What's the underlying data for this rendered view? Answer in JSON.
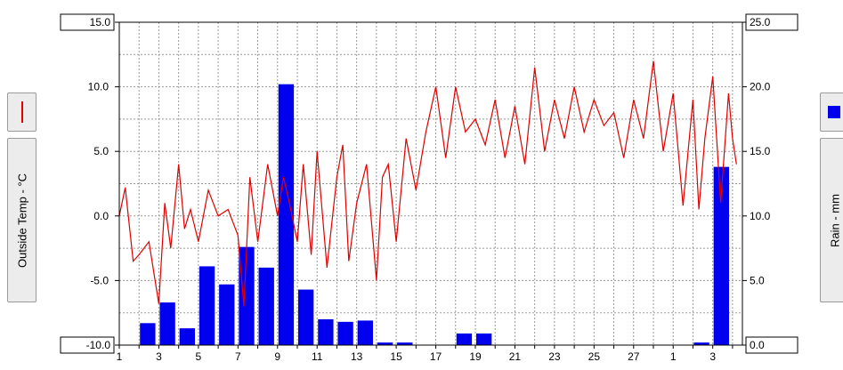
{
  "left_panel": {
    "legend_icon": "red-line-swatch-icon",
    "axis_label": "Outside Temp - °C"
  },
  "right_panel": {
    "legend_icon": "blue-square-swatch-icon",
    "axis_label": "Rain - mm"
  },
  "chart_data": {
    "type": "line+bar",
    "series": [
      {
        "name": "Outside Temp",
        "axis": "left",
        "unit": "°C",
        "color": "#e00000",
        "x": [
          1,
          1.3,
          1.7,
          2,
          2.5,
          3,
          3.3,
          3.6,
          4,
          4.3,
          4.6,
          5,
          5.5,
          6,
          6.5,
          7,
          7.3,
          7.6,
          8,
          8.5,
          9,
          9.3,
          9.6,
          10,
          10.3,
          10.7,
          11,
          11.5,
          12,
          12.3,
          12.6,
          13,
          13.5,
          14,
          14.3,
          14.6,
          15,
          15.5,
          16,
          16.5,
          17,
          17.5,
          18,
          18.5,
          19,
          19.5,
          20,
          20.5,
          21,
          21.5,
          22,
          22.5,
          23,
          23.5,
          24,
          24.5,
          25,
          25.5,
          26,
          26.5,
          27,
          27.5,
          28,
          28.5,
          29,
          29.5,
          30,
          30.3,
          30.6,
          31,
          31.4,
          31.8,
          32,
          32.2
        ],
        "values": [
          0,
          2.2,
          -3.5,
          -3,
          -2,
          -6.8,
          1,
          -2.5,
          4,
          -1,
          0.5,
          -2,
          2,
          0,
          0.5,
          -1.5,
          -7,
          3,
          -2,
          4,
          0,
          3,
          1,
          -2,
          4,
          -3,
          5,
          -4,
          3,
          5.5,
          -3.5,
          1,
          4,
          -5,
          3,
          4,
          -2,
          6,
          2,
          6.5,
          10,
          4.5,
          10,
          6.5,
          7.5,
          5.5,
          9,
          4.5,
          8.5,
          4,
          11.5,
          5,
          9,
          6,
          10,
          6.5,
          9,
          7,
          8,
          4.5,
          9,
          6,
          12,
          5,
          9.5,
          0.8,
          9,
          0.5,
          6,
          10.8,
          1,
          9.5,
          6,
          4
        ]
      },
      {
        "name": "Rain",
        "axis": "right",
        "unit": "mm",
        "color": "#0000ee",
        "x": [
          1,
          2,
          3,
          4,
          5,
          6,
          7,
          8,
          9,
          10,
          11,
          12,
          13,
          14,
          15,
          16,
          17,
          18,
          19,
          20,
          21,
          22,
          23,
          24,
          25,
          26,
          27,
          28,
          29,
          30,
          31,
          32
        ],
        "values": [
          0,
          1.7,
          3.3,
          1.3,
          6.1,
          4.7,
          7.6,
          6,
          20.2,
          4.3,
          2,
          1.8,
          1.9,
          0.2,
          0.2,
          0,
          0,
          0.9,
          0.9,
          0,
          0,
          0,
          0,
          0,
          0,
          0,
          0,
          0,
          0,
          0.2,
          13.8,
          0
        ]
      }
    ],
    "x_tick_labels": [
      "1",
      "3",
      "5",
      "7",
      "9",
      "11",
      "13",
      "15",
      "17",
      "19",
      "21",
      "23",
      "25",
      "27",
      "1",
      "3"
    ],
    "y_left": {
      "label": "Outside Temp - °C",
      "ylim": [
        -10,
        15
      ],
      "ticks": [
        "15.0",
        "10.0",
        "5.0",
        "0.0",
        "-5.0",
        "-10.0"
      ]
    },
    "y_right": {
      "label": "Rain - mm",
      "ylim": [
        0,
        25
      ],
      "ticks": [
        "25.0",
        "20.0",
        "15.0",
        "10.0",
        "5.0",
        "0.0"
      ]
    },
    "grid": true
  }
}
